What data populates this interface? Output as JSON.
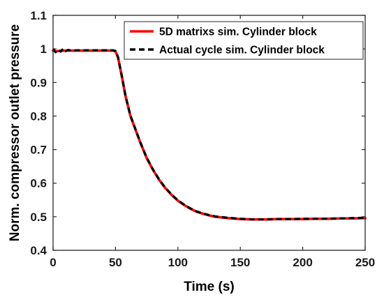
{
  "chart_data": {
    "type": "line",
    "xlabel": "Time (s)",
    "ylabel": "Norm. compressor outlet pressure",
    "xlim": [
      0,
      250
    ],
    "ylim": [
      0.4,
      1.1
    ],
    "xticks": [
      0,
      50,
      100,
      150,
      200,
      250
    ],
    "yticks": [
      0.4,
      0.5,
      0.6,
      0.7,
      0.8,
      0.9,
      1,
      1.1
    ],
    "xtick_labels": [
      "0",
      "50",
      "100",
      "150",
      "200",
      "250"
    ],
    "ytick_labels": [
      "0.4",
      "0.5",
      "0.6",
      "0.7",
      "0.8",
      "0.9",
      "1",
      "1.1"
    ],
    "grid": false,
    "legend_position": "top-right",
    "series": [
      {
        "name": "5D matrixs sim. Cylinder block",
        "color": "#ff0000",
        "style": "solid",
        "x": [
          0,
          2,
          5,
          10,
          20,
          30,
          40,
          48,
          50,
          52,
          55,
          58,
          62,
          66,
          70,
          75,
          80,
          85,
          90,
          95,
          100,
          105,
          110,
          115,
          120,
          125,
          130,
          140,
          150,
          160,
          170,
          180,
          190,
          200,
          210,
          220,
          230,
          240,
          250
        ],
        "y": [
          0.995,
          0.993,
          0.994,
          0.995,
          0.995,
          0.995,
          0.995,
          0.995,
          0.993,
          0.975,
          0.92,
          0.86,
          0.8,
          0.76,
          0.72,
          0.675,
          0.64,
          0.61,
          0.585,
          0.565,
          0.548,
          0.535,
          0.524,
          0.515,
          0.509,
          0.504,
          0.5,
          0.496,
          0.493,
          0.492,
          0.492,
          0.493,
          0.493,
          0.493,
          0.494,
          0.494,
          0.495,
          0.495,
          0.496
        ]
      },
      {
        "name": "Actual cycle sim. Cylinder block",
        "color": "#000000",
        "style": "dashed",
        "x": [
          0,
          2,
          4,
          6,
          8,
          10,
          12,
          15,
          20,
          30,
          40,
          48,
          50,
          52,
          55,
          58,
          62,
          66,
          70,
          75,
          80,
          85,
          90,
          95,
          100,
          105,
          110,
          115,
          120,
          125,
          130,
          140,
          150,
          160,
          170,
          180,
          190,
          200,
          210,
          220,
          230,
          240,
          250
        ],
        "y": [
          1.0,
          0.99,
          0.998,
          0.992,
          1.0,
          0.993,
          0.997,
          0.995,
          0.996,
          0.996,
          0.996,
          0.996,
          0.994,
          0.976,
          0.921,
          0.861,
          0.801,
          0.761,
          0.721,
          0.676,
          0.641,
          0.611,
          0.586,
          0.566,
          0.549,
          0.536,
          0.525,
          0.516,
          0.51,
          0.505,
          0.501,
          0.497,
          0.494,
          0.492,
          0.492,
          0.493,
          0.493,
          0.494,
          0.494,
          0.494,
          0.495,
          0.496,
          0.497
        ]
      }
    ]
  }
}
